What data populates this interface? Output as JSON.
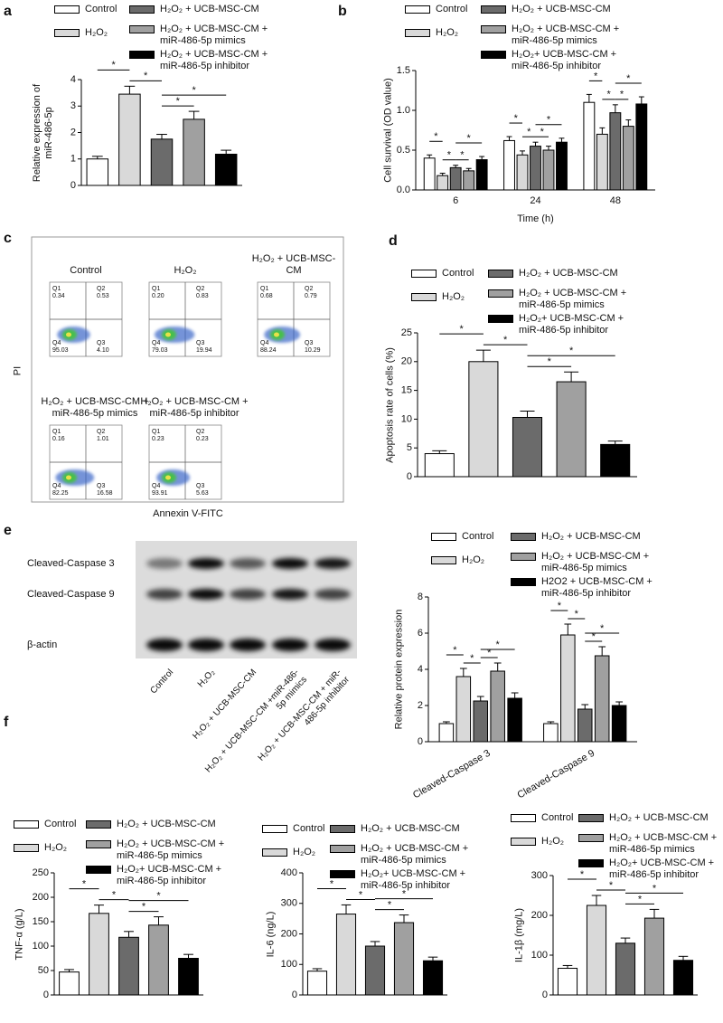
{
  "panel_labels": [
    "a",
    "b",
    "c",
    "d",
    "e",
    "f"
  ],
  "chart_data": [
    {
      "type": "bar",
      "y_label": "Relative expression of miR-486-5p",
      "ylim": [
        0,
        4
      ],
      "yticks": [
        0,
        1,
        2,
        3,
        4
      ],
      "annotations": [
        "*",
        "*",
        "*",
        "*"
      ],
      "series": [
        {
          "name": "Control",
          "color": "#ffffff",
          "values": [
            1.0
          ],
          "errors": [
            0.1
          ]
        },
        {
          "name": "H₂O₂",
          "color": "#d9d9d9",
          "values": [
            3.45
          ],
          "errors": [
            0.3
          ]
        },
        {
          "name": "H₂O₂ + UCB-MSC-CM",
          "color": "#6b6b6b",
          "values": [
            1.75
          ],
          "errors": [
            0.18
          ]
        },
        {
          "name": "H₂O₂ + UCB-MSC-CM + miR-486-5p mimics",
          "color": "#a0a0a0",
          "values": [
            2.5
          ],
          "errors": [
            0.3
          ]
        },
        {
          "name": "H₂O₂ + UCB-MSC-CM + miR-486-5p inhibitor",
          "color": "#000000",
          "values": [
            1.18
          ],
          "errors": [
            0.15
          ]
        }
      ]
    },
    {
      "type": "bar",
      "y_label": "Cell survival (OD value)",
      "x_label": "Time (h)",
      "categories": [
        "6",
        "24",
        "48"
      ],
      "ylim": [
        0,
        1.5
      ],
      "yticks": [
        {
          "value": 0,
          "label": "0.0"
        },
        0.5,
        {
          "value": 1,
          "label": "1.0"
        },
        1.5
      ],
      "annotations": [
        "*",
        "*",
        "*",
        "*",
        "*",
        "*",
        "*",
        "*",
        "*",
        "*",
        "*",
        "*"
      ],
      "series": [
        {
          "name": "Control",
          "color": "#ffffff",
          "values": [
            0.4,
            0.62,
            1.1
          ],
          "errors": [
            0.04,
            0.05,
            0.1
          ]
        },
        {
          "name": "H₂O₂",
          "color": "#d9d9d9",
          "values": [
            0.18,
            0.44,
            0.7
          ],
          "errors": [
            0.03,
            0.05,
            0.08
          ]
        },
        {
          "name": "H₂O₂ + UCB-MSC-CM",
          "color": "#6b6b6b",
          "values": [
            0.28,
            0.55,
            0.97
          ],
          "errors": [
            0.03,
            0.05,
            0.1
          ]
        },
        {
          "name": "H₂O₂ + UCB-MSC-CM + miR-486-5p mimics",
          "color": "#a0a0a0",
          "values": [
            0.24,
            0.5,
            0.8
          ],
          "errors": [
            0.03,
            0.05,
            0.08
          ]
        },
        {
          "name": "H₂O₂+ UCB-MSC-CM + miR-486-5p inhibitor",
          "color": "#000000",
          "values": [
            0.38,
            0.6,
            1.08
          ],
          "errors": [
            0.04,
            0.05,
            0.09
          ]
        }
      ]
    },
    {
      "type": "bar",
      "y_label": "Apoptosis rate of cells (%)",
      "ylim": [
        0,
        25
      ],
      "yticks": [
        0,
        5,
        10,
        15,
        20,
        25
      ],
      "annotations": [
        "*",
        "*",
        "*",
        "*"
      ],
      "series": [
        {
          "name": "Control",
          "color": "#ffffff",
          "values": [
            4
          ],
          "errors": [
            0.5
          ]
        },
        {
          "name": "H₂O₂",
          "color": "#d9d9d9",
          "values": [
            20
          ],
          "errors": [
            2
          ]
        },
        {
          "name": "H₂O₂ + UCB-MSC-CM",
          "color": "#6b6b6b",
          "values": [
            10.3
          ],
          "errors": [
            1.1
          ]
        },
        {
          "name": "H₂O₂ + UCB-MSC-CM + miR-486-5p mimics",
          "color": "#a0a0a0",
          "values": [
            16.5
          ],
          "errors": [
            1.7
          ]
        },
        {
          "name": "H₂O₂+ UCB-MSC-CM + miR-486-5p inhibitor",
          "color": "#000000",
          "values": [
            5.6
          ],
          "errors": [
            0.6
          ]
        }
      ]
    },
    {
      "type": "bar",
      "y_label": "Relative protein expression",
      "categories": [
        "Cleaved-Caspase 3",
        "Cleaved-Caspase 9"
      ],
      "ylim": [
        0,
        8
      ],
      "yticks": [
        0,
        2,
        4,
        6,
        8
      ],
      "annotations": [
        "*",
        "*",
        "*",
        "*",
        "*",
        "*",
        "*",
        "*"
      ],
      "series": [
        {
          "name": "Control",
          "color": "#ffffff",
          "values": [
            1.0,
            1.0
          ],
          "errors": [
            0.1,
            0.1
          ]
        },
        {
          "name": "H₂O₂",
          "color": "#d9d9d9",
          "values": [
            3.6,
            5.9
          ],
          "errors": [
            0.45,
            0.6
          ]
        },
        {
          "name": "H₂O₂ + UCB-MSC-CM",
          "color": "#6b6b6b",
          "values": [
            2.25,
            1.8
          ],
          "errors": [
            0.25,
            0.25
          ]
        },
        {
          "name": "H₂O₂ + UCB-MSC-CM + miR-486-5p mimics",
          "color": "#a0a0a0",
          "values": [
            3.9,
            4.75
          ],
          "errors": [
            0.45,
            0.5
          ]
        },
        {
          "name": "H2O2 + UCB-MSC-CM + miR-486-5p inhibitor",
          "color": "#000000",
          "values": [
            2.4,
            2.0
          ],
          "errors": [
            0.3,
            0.2
          ]
        }
      ]
    },
    {
      "type": "bar",
      "y_label": "TNF-α (g/L)",
      "ylim": [
        0,
        250
      ],
      "yticks": [
        0,
        50,
        100,
        150,
        200,
        250
      ],
      "annotations": [
        "*",
        "*",
        "*",
        "*"
      ],
      "series": [
        {
          "name": "Control",
          "color": "#ffffff",
          "values": [
            47
          ],
          "errors": [
            5
          ]
        },
        {
          "name": "H₂O₂",
          "color": "#d9d9d9",
          "values": [
            167
          ],
          "errors": [
            17
          ]
        },
        {
          "name": "H₂O₂ + UCB-MSC-CM",
          "color": "#6b6b6b",
          "values": [
            118
          ],
          "errors": [
            12
          ]
        },
        {
          "name": "H₂O₂ + UCB-MSC-CM + miR-486-5p mimics",
          "color": "#a0a0a0",
          "values": [
            143
          ],
          "errors": [
            17
          ]
        },
        {
          "name": "H₂O₂+ UCB-MSC-CM + miR-486-5p inhibitor",
          "color": "#000000",
          "values": [
            75
          ],
          "errors": [
            8
          ]
        }
      ]
    },
    {
      "type": "bar",
      "y_label": "IL-6 (ng/L)",
      "ylim": [
        0,
        400
      ],
      "yticks": [
        0,
        100,
        200,
        300,
        400
      ],
      "annotations": [
        "*",
        "*",
        "*",
        "*"
      ],
      "series": [
        {
          "name": "Control",
          "color": "#ffffff",
          "values": [
            78
          ],
          "errors": [
            8
          ]
        },
        {
          "name": "H₂O₂",
          "color": "#d9d9d9",
          "values": [
            265
          ],
          "errors": [
            30
          ]
        },
        {
          "name": "H₂O₂ + UCB-MSC-CM",
          "color": "#6b6b6b",
          "values": [
            160
          ],
          "errors": [
            15
          ]
        },
        {
          "name": "H₂O₂ + UCB-MSC-CM + miR-486-5p mimics",
          "color": "#a0a0a0",
          "values": [
            237
          ],
          "errors": [
            25
          ]
        },
        {
          "name": "H₂O₂+ UCB-MSC-CM + miR-486-5p inhibitor",
          "color": "#000000",
          "values": [
            112
          ],
          "errors": [
            12
          ]
        }
      ]
    },
    {
      "type": "bar",
      "y_label": "IL-1β (mg/L)",
      "ylim": [
        0,
        300
      ],
      "yticks": [
        0,
        100,
        200,
        300
      ],
      "annotations": [
        "*",
        "*",
        "*",
        "*"
      ],
      "series": [
        {
          "name": "Control",
          "color": "#ffffff",
          "values": [
            67
          ],
          "errors": [
            7
          ]
        },
        {
          "name": "H₂O₂",
          "color": "#d9d9d9",
          "values": [
            225
          ],
          "errors": [
            25
          ]
        },
        {
          "name": "H₂O₂ + UCB-MSC-CM",
          "color": "#6b6b6b",
          "values": [
            130
          ],
          "errors": [
            13
          ]
        },
        {
          "name": "H₂O₂ + UCB-MSC-CM + miR-486-5p mimics",
          "color": "#a0a0a0",
          "values": [
            193
          ],
          "errors": [
            22
          ]
        },
        {
          "name": "H₂O₂+ UCB-MSC-CM + miR-486-5p inhibitor",
          "color": "#000000",
          "values": [
            87
          ],
          "errors": [
            10
          ]
        }
      ]
    }
  ],
  "flow": {
    "y_label": "PI",
    "x_label": "Annexin V-FITC",
    "plots": [
      {
        "title": "Control",
        "quadrants": [
          {
            "label": "Q1",
            "value": "0.34"
          },
          {
            "label": "Q2",
            "value": "0.53"
          },
          {
            "label": "Q4",
            "value": "95.03"
          },
          {
            "label": "Q3",
            "value": "4.10"
          }
        ]
      },
      {
        "title": "H₂O₂",
        "quadrants": [
          {
            "label": "Q1",
            "value": "0.20"
          },
          {
            "label": "Q2",
            "value": "0.83"
          },
          {
            "label": "Q4",
            "value": "79.03"
          },
          {
            "label": "Q3",
            "value": "19.94"
          }
        ]
      },
      {
        "title": "H₂O₂ + UCB-MSC-CM",
        "quadrants": [
          {
            "label": "Q1",
            "value": "0.68"
          },
          {
            "label": "Q2",
            "value": "0.79"
          },
          {
            "label": "Q4",
            "value": "88.24"
          },
          {
            "label": "Q3",
            "value": "10.29"
          }
        ]
      },
      {
        "title": "H₂O₂ + UCB-MSC-CM + miR-486-5p  mimics",
        "quadrants": [
          {
            "label": "Q1",
            "value": "0.16"
          },
          {
            "label": "Q2",
            "value": "1.01"
          },
          {
            "label": "Q4",
            "value": "82.25"
          },
          {
            "label": "Q3",
            "value": "16.58"
          }
        ]
      },
      {
        "title": "H₂O₂ + UCB-MSC-CM + miR-486-5p inhibitor",
        "quadrants": [
          {
            "label": "Q1",
            "value": "0.23"
          },
          {
            "label": "Q2",
            "value": "0.23"
          },
          {
            "label": "Q4",
            "value": "93.91"
          },
          {
            "label": "Q3",
            "value": "5.63"
          }
        ]
      }
    ]
  },
  "blot": {
    "rows": [
      "Cleaved-Caspase 3",
      "Cleaved-Caspase 9",
      "β-actin"
    ],
    "lanes": [
      "Control",
      "H₂O₂",
      "H₂O₂ + UCB-MSC-CM",
      "H₂O₂ + UCB-MSC-CM +miR-486-5p mimics",
      "H₂O₂ + UCB-MSC-CM + miR-486-5p inhibitor"
    ]
  }
}
